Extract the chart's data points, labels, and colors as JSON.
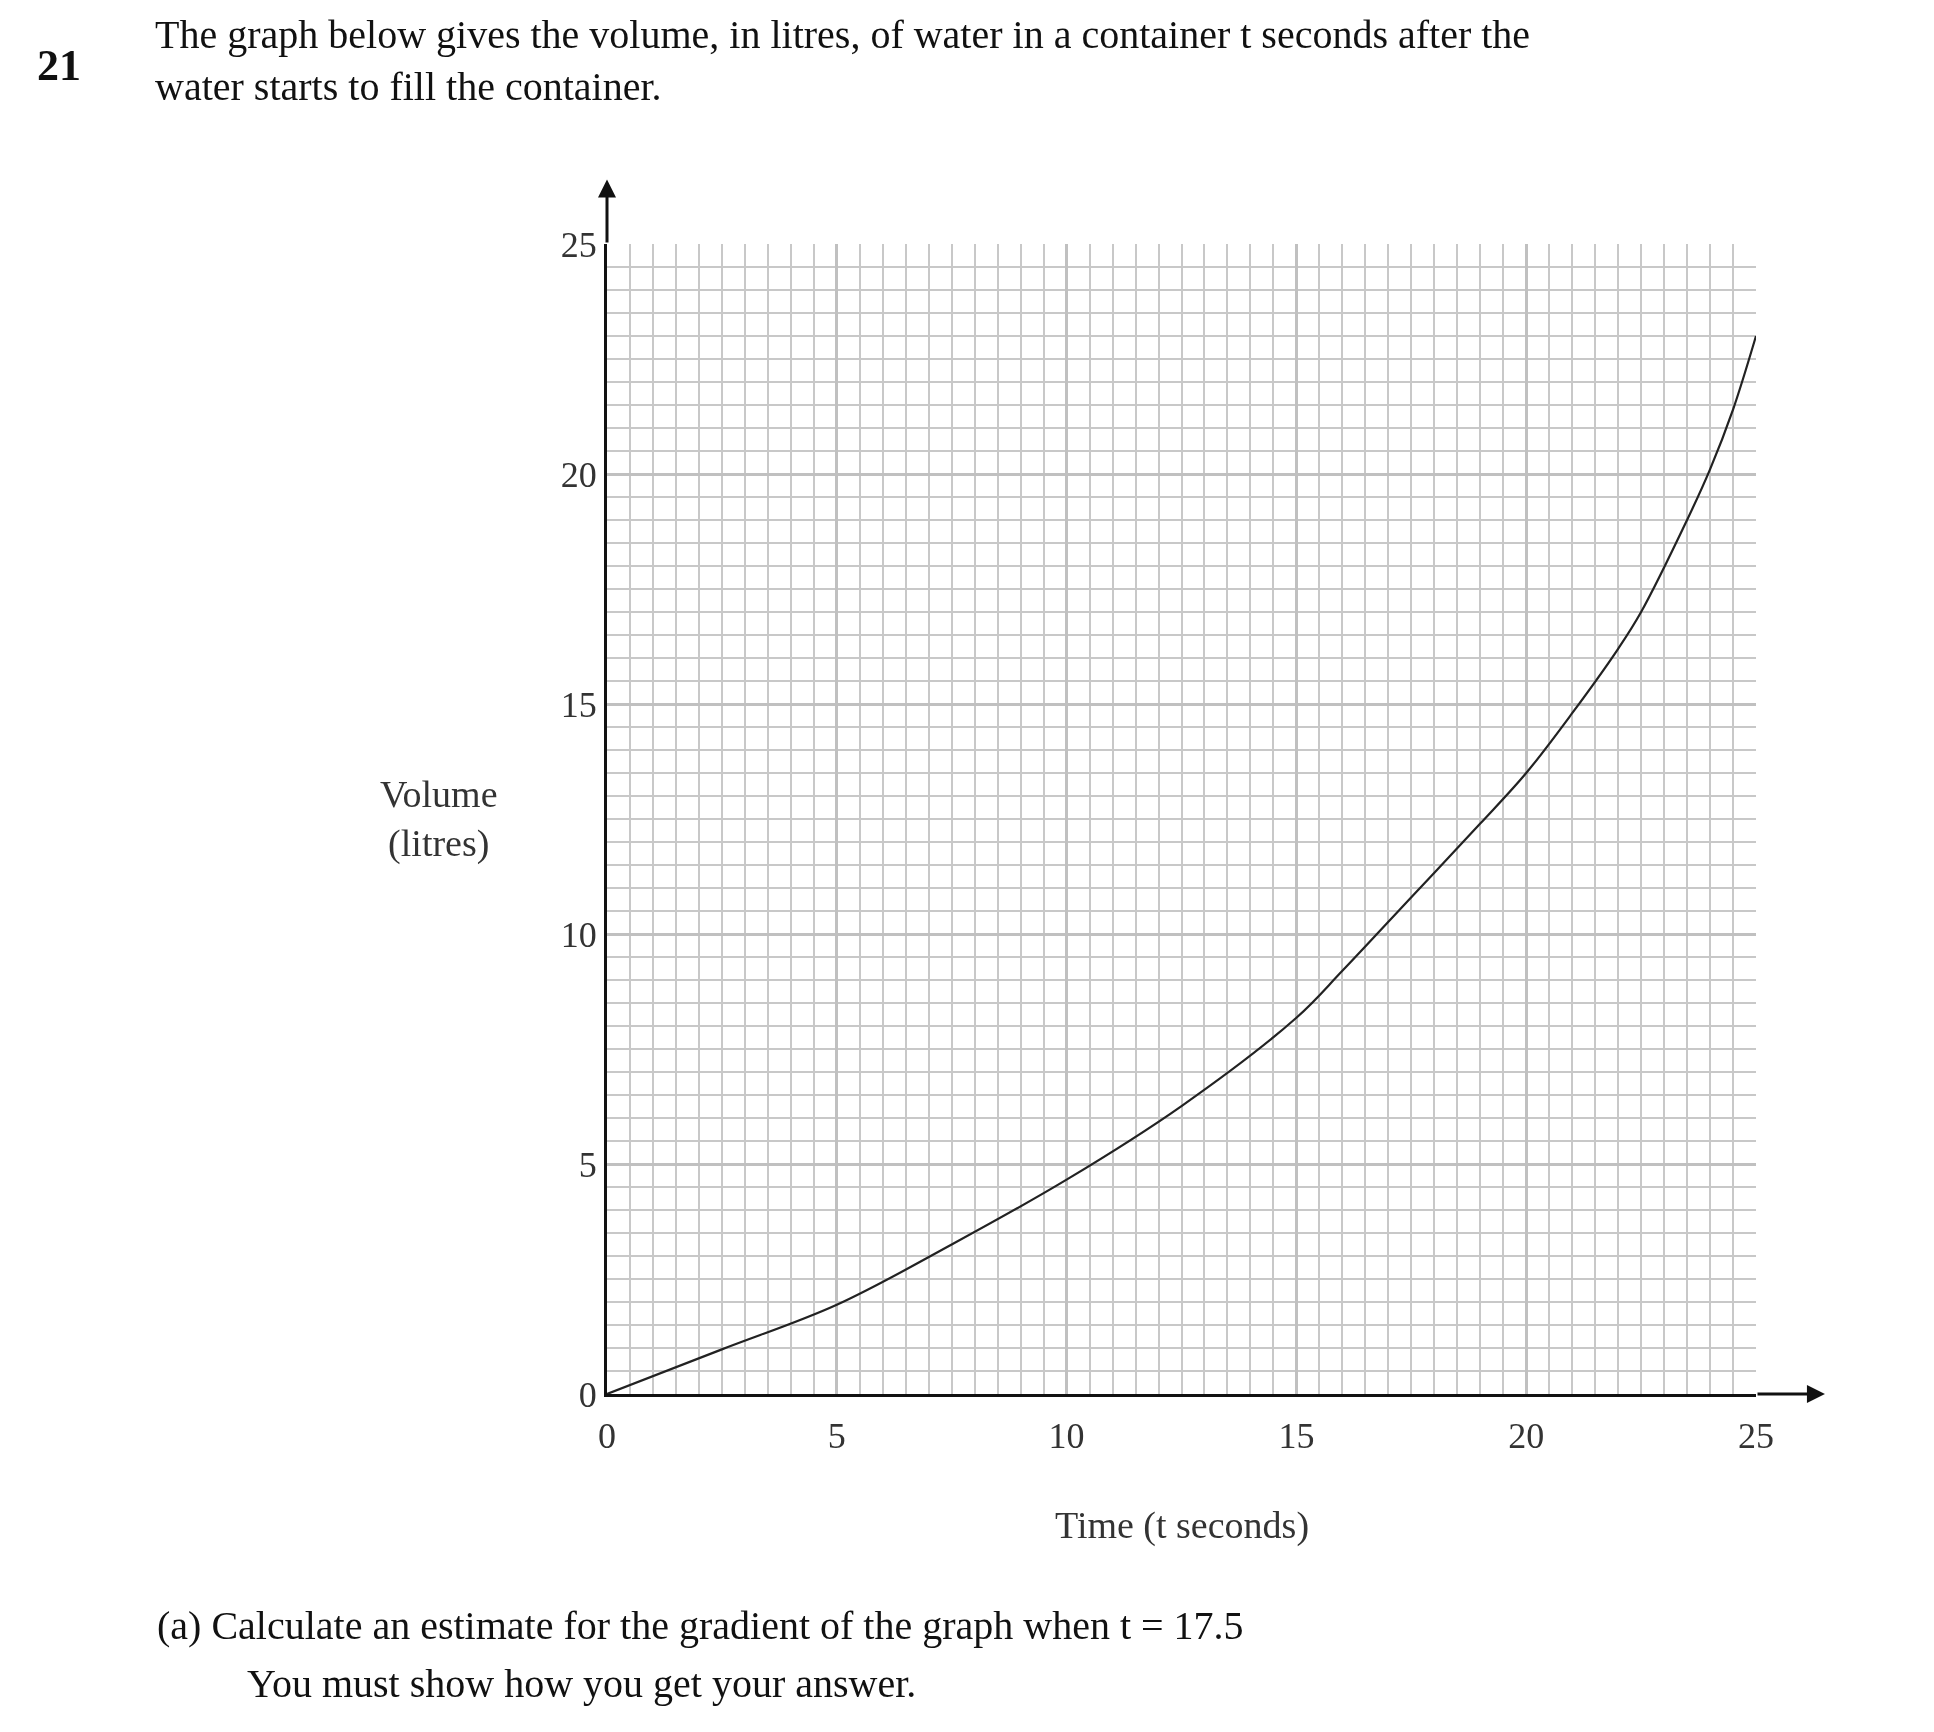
{
  "chart_data": {
    "type": "line",
    "title": "The graph below gives the volume, in litres, of water in a container t seconds after the water starts to fill the container.",
    "xlabel": "Time (t seconds)",
    "ylabel": "Volume (litres)",
    "annotations": [
      "21",
      "(a) Calculate an estimate for the gradient of the graph when t = 17.5",
      "You must show how you get your answer."
    ],
    "x": [
      0,
      2.5,
      5,
      7.5,
      10,
      12.5,
      15,
      16,
      17.5,
      19,
      20,
      21,
      22,
      22.5,
      23.5,
      24,
      24.5,
      25
    ],
    "series": [
      {
        "color": "#222222",
        "values": [
          0,
          0.97,
          1.94,
          3.25,
          4.66,
          6.26,
          8.18,
          9.2,
          10.8,
          12.4,
          13.5,
          14.8,
          16.2,
          17.0,
          19.0,
          20.1,
          21.4,
          23.0
        ]
      }
    ],
    "xlim": [
      0,
      25
    ],
    "ylim": [
      0,
      25
    ],
    "xticks": [
      0,
      5,
      10,
      15,
      20,
      25
    ],
    "yticks": [
      0,
      5,
      10,
      15,
      20,
      25
    ],
    "grid": true,
    "marker": "none",
    "line_style": "solid"
  }
}
